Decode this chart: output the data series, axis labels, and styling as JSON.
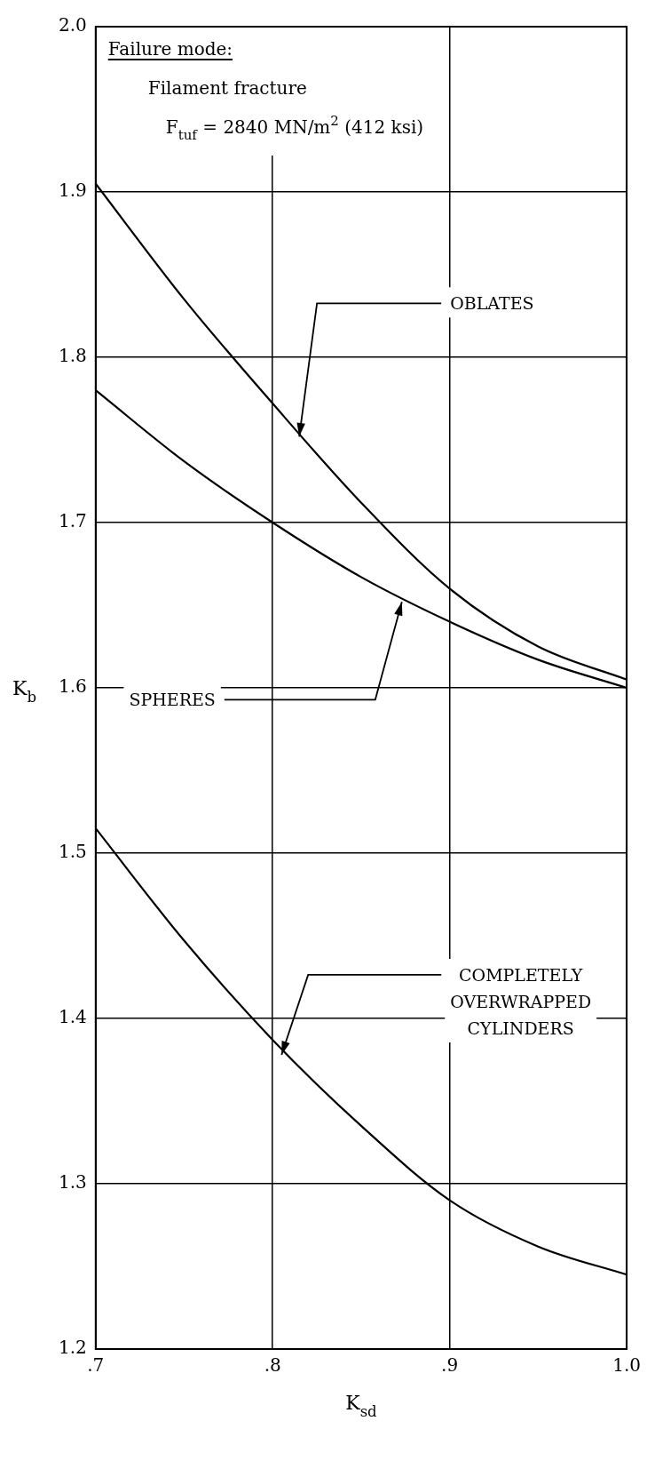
{
  "chart_data": {
    "type": "line",
    "xlabel": "K$_{sd}$",
    "ylabel": "K$_{b}$",
    "x": [
      0.7,
      0.75,
      0.8,
      0.85,
      0.9,
      0.95,
      1.0
    ],
    "series": [
      {
        "color": "#000000",
        "values": [
          1.905,
          1.835,
          1.772,
          1.712,
          1.66,
          1.625,
          1.605
        ]
      },
      {
        "color": "#000000",
        "values": [
          1.78,
          1.737,
          1.7,
          1.667,
          1.64,
          1.617,
          1.6
        ]
      },
      {
        "color": "#000000",
        "values": [
          1.515,
          1.447,
          1.387,
          1.335,
          1.29,
          1.262,
          1.245
        ]
      }
    ],
    "xlim": [
      0.7,
      1.0
    ],
    "ylim": [
      1.2,
      2.0
    ],
    "xticks": [
      {
        "value": 0.7,
        "label": ".7"
      },
      {
        "value": 0.8,
        "label": ".8"
      },
      {
        "value": 0.9,
        "label": ".9"
      },
      {
        "value": 1.0,
        "label": "1.0"
      }
    ],
    "yticks": [
      {
        "value": 1.2,
        "label": "1.2"
      },
      {
        "value": 1.3,
        "label": "1.3"
      },
      {
        "value": 1.4,
        "label": "1.4"
      },
      {
        "value": 1.5,
        "label": "1.5"
      },
      {
        "value": 1.6,
        "label": "1.6"
      },
      {
        "value": 1.7,
        "label": "1.7"
      },
      {
        "value": 1.8,
        "label": "1.8"
      },
      {
        "value": 1.9,
        "label": "1.9"
      },
      {
        "value": 2.0,
        "label": "2.0"
      }
    ],
    "grid": true,
    "marker": "none",
    "line_style": "solid",
    "annotations": [
      "Failure mode:",
      "Filament fracture",
      "F$_{tuf}$ = 2840 MN/m$^{2}$ (412 ksi)",
      {
        "text": "OBLATES",
        "x": 0.815,
        "y": 1.752
      },
      {
        "text": "SPHERES",
        "x": 0.873,
        "y": 1.652
      },
      {
        "text": "COMPLETELY\nOVERWRAPPED\nCYLINDERS",
        "x": 0.805,
        "y": 1.378
      }
    ]
  }
}
